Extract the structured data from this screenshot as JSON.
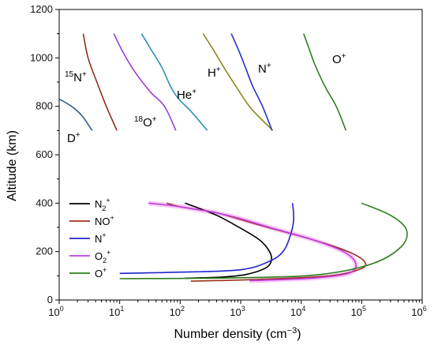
{
  "chart_data": {
    "type": "line",
    "xlabel": "Number density (cm⁻³)",
    "ylabel": "Altitude (km)",
    "xscale": "log",
    "xlim": [
      1,
      1000000
    ],
    "ylim": [
      0,
      1200
    ],
    "x_ticks": [
      {
        "value": 1,
        "base": "10",
        "exp": "0"
      },
      {
        "value": 10,
        "base": "10",
        "exp": "1"
      },
      {
        "value": 100,
        "base": "10",
        "exp": "2"
      },
      {
        "value": 1000,
        "base": "10",
        "exp": "3"
      },
      {
        "value": 10000,
        "base": "10",
        "exp": "4"
      },
      {
        "value": 100000,
        "base": "10",
        "exp": "5"
      },
      {
        "value": 1000000,
        "base": "10",
        "exp": "6"
      }
    ],
    "y_ticks": [
      "0",
      "200",
      "400",
      "600",
      "800",
      "1000",
      "1200"
    ],
    "legend_position": "lower-left",
    "upper_series": [
      {
        "name": "D⁺",
        "color": "#2e5f8e",
        "points": [
          [
            1.0,
            830
          ],
          [
            1.6,
            800
          ],
          [
            2.4,
            760
          ],
          [
            3.5,
            700
          ]
        ]
      },
      {
        "name": "¹⁵N⁺",
        "color": "#8b2f1c",
        "points": [
          [
            2.5,
            1100
          ],
          [
            3.0,
            1000
          ],
          [
            4.2,
            900
          ],
          [
            6.0,
            800
          ],
          [
            9.0,
            700
          ]
        ]
      },
      {
        "name": "¹⁸O⁺",
        "color": "#9a3fd6",
        "points": [
          [
            8.0,
            1100
          ],
          [
            11,
            1030
          ],
          [
            17,
            950
          ],
          [
            32,
            860
          ],
          [
            55,
            800
          ],
          [
            85,
            700
          ]
        ]
      },
      {
        "name": "He⁺",
        "color": "#2f8fb8",
        "points": [
          [
            23,
            1100
          ],
          [
            32,
            1040
          ],
          [
            50,
            960
          ],
          [
            70,
            880
          ],
          [
            95,
            830
          ],
          [
            150,
            780
          ],
          [
            280,
            700
          ]
        ]
      },
      {
        "name": "H⁺",
        "color": "#8a8a20",
        "points": [
          [
            240,
            1100
          ],
          [
            360,
            1030
          ],
          [
            560,
            950
          ],
          [
            900,
            870
          ],
          [
            1500,
            790
          ],
          [
            3400,
            700
          ]
        ]
      },
      {
        "name": "N⁺",
        "color": "#2233cc",
        "points": [
          [
            700,
            1100
          ],
          [
            930,
            1030
          ],
          [
            1200,
            960
          ],
          [
            1600,
            880
          ],
          [
            2300,
            800
          ],
          [
            3300,
            700
          ]
        ]
      },
      {
        "name": "O⁺",
        "color": "#2f7d1e",
        "points": [
          [
            11000,
            1100
          ],
          [
            13000,
            1050
          ],
          [
            17000,
            970
          ],
          [
            25000,
            880
          ],
          [
            38000,
            800
          ],
          [
            55000,
            700
          ]
        ]
      }
    ],
    "lower_series": [
      {
        "name": "N₂⁺",
        "sub": "2",
        "sup": "+",
        "base": "N",
        "color": "#000000",
        "points": [
          [
            120,
            90
          ],
          [
            500,
            95
          ],
          [
            1200,
            105
          ],
          [
            2500,
            130
          ],
          [
            3200,
            160
          ],
          [
            3000,
            200
          ],
          [
            2000,
            250
          ],
          [
            800,
            310
          ],
          [
            400,
            350
          ],
          [
            200,
            380
          ],
          [
            120,
            400
          ]
        ]
      },
      {
        "name": "NO⁺",
        "sub": "",
        "sup": "+",
        "base": "NO",
        "color": "#a0321c",
        "points": [
          [
            150,
            78
          ],
          [
            2000,
            85
          ],
          [
            30000,
            100
          ],
          [
            100000,
            130
          ],
          [
            110000,
            160
          ],
          [
            60000,
            200
          ],
          [
            15000,
            250
          ],
          [
            2000,
            310
          ],
          [
            400,
            360
          ],
          [
            100,
            385
          ],
          [
            60,
            400
          ]
        ]
      },
      {
        "name": "N⁺",
        "sub": "",
        "sup": "+",
        "base": "N",
        "color": "#2222cc",
        "points": [
          [
            10,
            110
          ],
          [
            100,
            115
          ],
          [
            1000,
            125
          ],
          [
            3000,
            160
          ],
          [
            5000,
            200
          ],
          [
            6500,
            260
          ],
          [
            7500,
            330
          ],
          [
            7200,
            400
          ]
        ]
      },
      {
        "name": "O₂⁺",
        "sub": "2",
        "sup": "+",
        "base": "O",
        "color": "#c03ce0",
        "points": [
          [
            1400,
            80
          ],
          [
            15000,
            90
          ],
          [
            60000,
            110
          ],
          [
            80000,
            150
          ],
          [
            50000,
            200
          ],
          [
            15000,
            250
          ],
          [
            3000,
            300
          ],
          [
            600,
            350
          ],
          [
            100,
            385
          ],
          [
            30,
            400
          ]
        ]
      },
      {
        "name": "O⁺",
        "sub": "",
        "sup": "+",
        "base": "O",
        "color": "#2f7d1e",
        "points": [
          [
            10,
            88
          ],
          [
            1000,
            92
          ],
          [
            20000,
            105
          ],
          [
            150000,
            150
          ],
          [
            450000,
            220
          ],
          [
            550000,
            290
          ],
          [
            300000,
            350
          ],
          [
            100000,
            400
          ]
        ]
      }
    ]
  },
  "labels": {
    "d_plus": "D",
    "d_plus_sup": "+",
    "n15_pre": "15",
    "n15": "N",
    "n15_sup": "+",
    "o18_pre": "18",
    "o18": "O",
    "o18_sup": "+",
    "he_plus": "He",
    "he_plus_sup": "+",
    "h_plus": "H",
    "h_plus_sup": "+",
    "n_plus": "N",
    "n_plus_sup": "+",
    "o_plus": "O",
    "o_plus_sup": "+"
  }
}
